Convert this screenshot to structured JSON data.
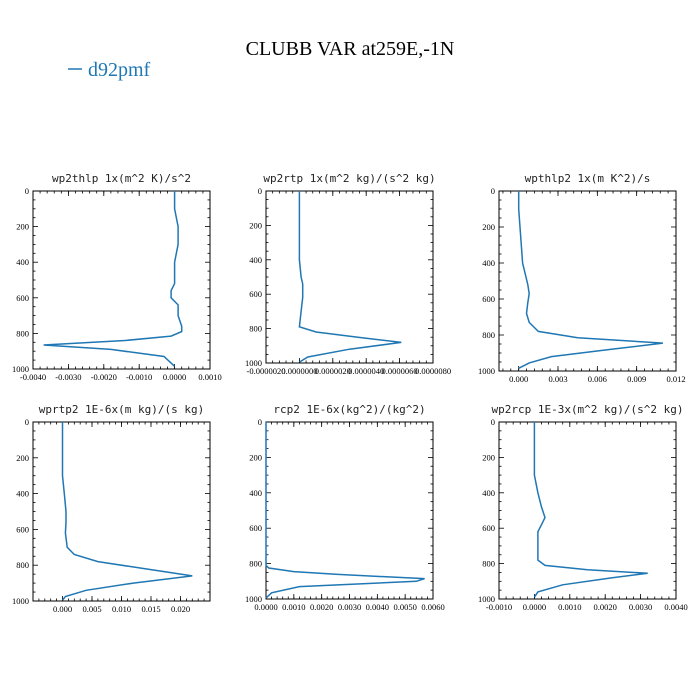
{
  "title": "CLUBB VAR at259E,-1N",
  "legend": {
    "label": "d92pmf",
    "color": "#1f77b4"
  },
  "chart_data": [
    {
      "type": "line",
      "title": "wp2thlp   1x(m^2 K)/s^2",
      "xlim": [
        -0.004,
        0.001
      ],
      "xticks": [
        -0.004,
        -0.003,
        -0.002,
        -0.001,
        0.0,
        0.001
      ],
      "xtick_labels": [
        "-0.0040",
        "-0.0030",
        "-0.0020",
        "-0.0010",
        "0.0000",
        "0.0010"
      ],
      "ylim": [
        1000,
        0
      ],
      "yticks": [
        0,
        200,
        400,
        600,
        800,
        1000
      ],
      "ytick_labels": [
        "0",
        "200",
        "400",
        "600",
        "800",
        "1000"
      ],
      "series": [
        {
          "color": "#1f77b4",
          "x": [
            0.0,
            0.0,
            0.0001,
            0.0001,
            0.0,
            0.0,
            0.0,
            -0.0001,
            -0.0001,
            0.0001,
            0.0001,
            0.0002,
            0.0002,
            -0.0001,
            -0.0014,
            -0.0037,
            -0.0018,
            -0.0003,
            0.0
          ],
          "y": [
            0,
            100,
            200,
            300,
            400,
            470,
            520,
            560,
            600,
            640,
            700,
            760,
            790,
            815,
            840,
            865,
            890,
            930,
            985
          ]
        }
      ]
    },
    {
      "type": "line",
      "title": "wp2rtp   1x(m^2 kg)/(s^2 kg)",
      "xlim": [
        -2e-06,
        8e-06
      ],
      "xticks": [
        -2e-06,
        0.0,
        2e-06,
        4e-06,
        6e-06,
        8e-06
      ],
      "xtick_labels": [
        "-0.0000020",
        "0.0000000",
        "0.0000020",
        "0.0000040",
        "0.0000060",
        "0.0000080"
      ],
      "ylim": [
        1000,
        0
      ],
      "yticks": [
        0,
        200,
        400,
        600,
        800,
        1000
      ],
      "ytick_labels": [
        "0",
        "200",
        "400",
        "600",
        "800",
        "1000"
      ],
      "series": [
        {
          "color": "#1f77b4",
          "x": [
            0.0,
            0.0,
            0.0,
            0.0,
            0.0,
            1e-07,
            2e-07,
            2e-07,
            2e-07,
            1e-07,
            0.0,
            1e-06,
            3.5e-06,
            6.1e-06,
            3e-06,
            5e-07,
            0.0
          ],
          "y": [
            0,
            100,
            200,
            300,
            400,
            500,
            540,
            580,
            620,
            700,
            790,
            820,
            850,
            880,
            920,
            965,
            995
          ]
        }
      ]
    },
    {
      "type": "line",
      "title": "wpthlp2   1x(m K^2)/s",
      "xlim": [
        -0.0015,
        0.012
      ],
      "xticks": [
        0.0,
        0.003,
        0.006,
        0.009,
        0.012
      ],
      "xtick_labels": [
        "0.000",
        "0.003",
        "0.006",
        "0.009",
        "0.012"
      ],
      "ylim": [
        1000,
        0
      ],
      "yticks": [
        0,
        200,
        400,
        600,
        800,
        1000
      ],
      "ytick_labels": [
        "0",
        "200",
        "400",
        "600",
        "800",
        "1000"
      ],
      "series": [
        {
          "color": "#1f77b4",
          "x": [
            0.0,
            0.0,
            0.0001,
            0.0002,
            0.0003,
            0.0005,
            0.0007,
            0.0008,
            0.0007,
            0.0006,
            0.0008,
            0.0015,
            0.0045,
            0.011,
            0.007,
            0.0025,
            0.0008,
            0.0
          ],
          "y": [
            0,
            100,
            200,
            300,
            400,
            460,
            520,
            570,
            620,
            680,
            730,
            780,
            815,
            845,
            880,
            920,
            955,
            985
          ]
        }
      ]
    },
    {
      "type": "line",
      "title": "wprtp2   1E-6x(m kg)/(s kg)",
      "xlim": [
        -0.005,
        0.025
      ],
      "xticks": [
        0.0,
        0.005,
        0.01,
        0.015,
        0.02
      ],
      "xtick_labels": [
        "0.000",
        "0.005",
        "0.010",
        "0.015",
        "0.020"
      ],
      "ylim": [
        1000,
        0
      ],
      "yticks": [
        0,
        200,
        400,
        600,
        800,
        1000
      ],
      "ytick_labels": [
        "0",
        "200",
        "400",
        "600",
        "800",
        "1000"
      ],
      "series": [
        {
          "color": "#1f77b4",
          "x": [
            0.0,
            0.0,
            0.0,
            0.0,
            0.0003,
            0.0006,
            0.0006,
            0.0005,
            0.0008,
            0.002,
            0.006,
            0.014,
            0.022,
            0.012,
            0.004,
            0.0005,
            0.0
          ],
          "y": [
            0,
            100,
            200,
            300,
            400,
            500,
            560,
            620,
            700,
            740,
            780,
            820,
            860,
            900,
            940,
            975,
            995
          ]
        }
      ]
    },
    {
      "type": "line",
      "title": "rcp2   1E-6x(kg^2)/(kg^2)",
      "xlim": [
        0.0,
        0.006
      ],
      "xticks": [
        0.0,
        0.001,
        0.002,
        0.003,
        0.004,
        0.005,
        0.006
      ],
      "xtick_labels": [
        "0.0000",
        "0.0010",
        "0.0020",
        "0.0030",
        "0.0040",
        "0.0050",
        "0.0060"
      ],
      "ylim": [
        1000,
        0
      ],
      "yticks": [
        0,
        200,
        400,
        600,
        800,
        1000
      ],
      "ytick_labels": [
        "0",
        "200",
        "400",
        "600",
        "800",
        "1000"
      ],
      "series": [
        {
          "color": "#1f77b4",
          "x": [
            0.0,
            0.0,
            0.0,
            0.0,
            0.0,
            0.0,
            0.0,
            0.0001,
            0.001,
            0.0025,
            0.0044,
            0.0057,
            0.0054,
            0.0012,
            0.0002,
            0.0
          ],
          "y": [
            0,
            200,
            400,
            600,
            700,
            780,
            810,
            825,
            845,
            860,
            875,
            885,
            900,
            930,
            965,
            995
          ]
        }
      ]
    },
    {
      "type": "line",
      "title": "wp2rcp   1E-3x(m^2 kg)/(s^2 kg)",
      "xlim": [
        -0.001,
        0.004
      ],
      "xticks": [
        -0.001,
        0.0,
        0.001,
        0.002,
        0.003,
        0.004
      ],
      "xtick_labels": [
        "-0.0010",
        "0.0000",
        "0.0010",
        "0.0020",
        "0.0030",
        "0.0040"
      ],
      "ylim": [
        1000,
        0
      ],
      "yticks": [
        0,
        200,
        400,
        600,
        800,
        1000
      ],
      "ytick_labels": [
        "0",
        "200",
        "400",
        "600",
        "800",
        "1000"
      ],
      "series": [
        {
          "color": "#1f77b4",
          "x": [
            0.0,
            0.0,
            0.0,
            0.0,
            0.0001,
            0.0002,
            0.0003,
            0.0002,
            0.0001,
            0.0001,
            0.0001,
            0.0003,
            0.0015,
            0.0032,
            0.0022,
            0.0008,
            0.0001,
            0.0
          ],
          "y": [
            0,
            100,
            200,
            300,
            400,
            480,
            540,
            580,
            620,
            700,
            780,
            810,
            835,
            855,
            880,
            920,
            960,
            990
          ]
        }
      ]
    }
  ]
}
